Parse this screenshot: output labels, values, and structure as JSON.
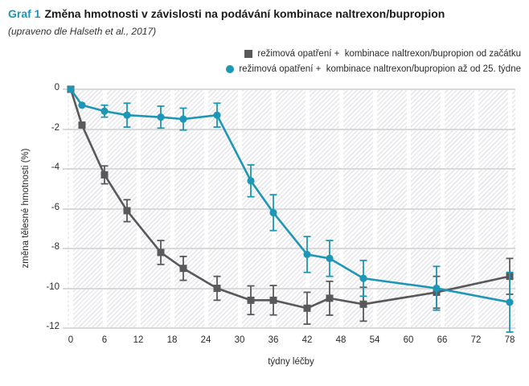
{
  "header": {
    "label": "Graf 1",
    "title": "Změna hmotnosti v závislosti na podávání kombinace naltrexon/bupropion",
    "subtitle": "(upraveno dle Halseth et al., 2017)"
  },
  "legend": [
    {
      "marker": "square",
      "color": "#59595b",
      "label": "režimová opatření +  kombinace naltrexon/bupropion od začátku"
    },
    {
      "marker": "circle",
      "color": "#1e96b5",
      "label": "režimová opatření +  kombinace naltrexon/bupropion až od 25. týdne"
    }
  ],
  "chart_data": {
    "type": "line",
    "title": "Změna hmotnosti v závislosti na podávání kombinace naltrexon/bupropion",
    "subtitle": "(upraveno dle Halseth et al., 2017)",
    "x": [
      0,
      2,
      6,
      10,
      16,
      20,
      26,
      32,
      36,
      42,
      46,
      52,
      65,
      78
    ],
    "series": [
      {
        "name": "režimová opatření + kombinace naltrexon/bupropion od začátku",
        "marker": "square",
        "color": "#59595b",
        "values": [
          0,
          -1.8,
          -4.3,
          -6.1,
          -8.2,
          -9.0,
          -10.0,
          -10.6,
          -10.6,
          -11.0,
          -10.5,
          -10.8,
          -10.2,
          -9.4
        ],
        "errors": [
          0,
          0,
          0.45,
          0.55,
          0.6,
          0.6,
          0.6,
          0.72,
          0.74,
          0.8,
          0.85,
          0.85,
          0.8,
          0.9
        ]
      },
      {
        "name": "režimová opatření + kombinace naltrexon/bupropion až od 25. týdne",
        "marker": "circle",
        "color": "#1e96b5",
        "values": [
          0,
          -0.8,
          -1.1,
          -1.3,
          -1.4,
          -1.5,
          -1.3,
          -4.6,
          -6.2,
          -8.3,
          -8.5,
          -9.5,
          -10.0,
          -10.7
        ],
        "errors": [
          0,
          0,
          0.3,
          0.6,
          0.55,
          0.55,
          0.6,
          0.8,
          0.9,
          0.9,
          0.9,
          0.9,
          1.1,
          1.5
        ]
      }
    ],
    "xlabel": "týdny léčby",
    "ylabel": "změna tělesné hmotnosti (%)",
    "xticks": [
      0,
      6,
      12,
      18,
      24,
      30,
      36,
      42,
      48,
      54,
      60,
      66,
      72,
      78
    ],
    "yticks": [
      0,
      -2,
      -4,
      -6,
      -8,
      -10,
      -12
    ],
    "xlim": [
      0,
      78
    ],
    "ylim": [
      -12,
      0
    ],
    "grid": "horizontal",
    "legend_position": "top-right",
    "error_bars": true
  },
  "colors": {
    "accent_teal": "#1e96b5",
    "series_gray": "#59595b",
    "gridline": "#d9d9d9",
    "hatch": "#e8e8ec",
    "text": "#2b2b2d"
  }
}
